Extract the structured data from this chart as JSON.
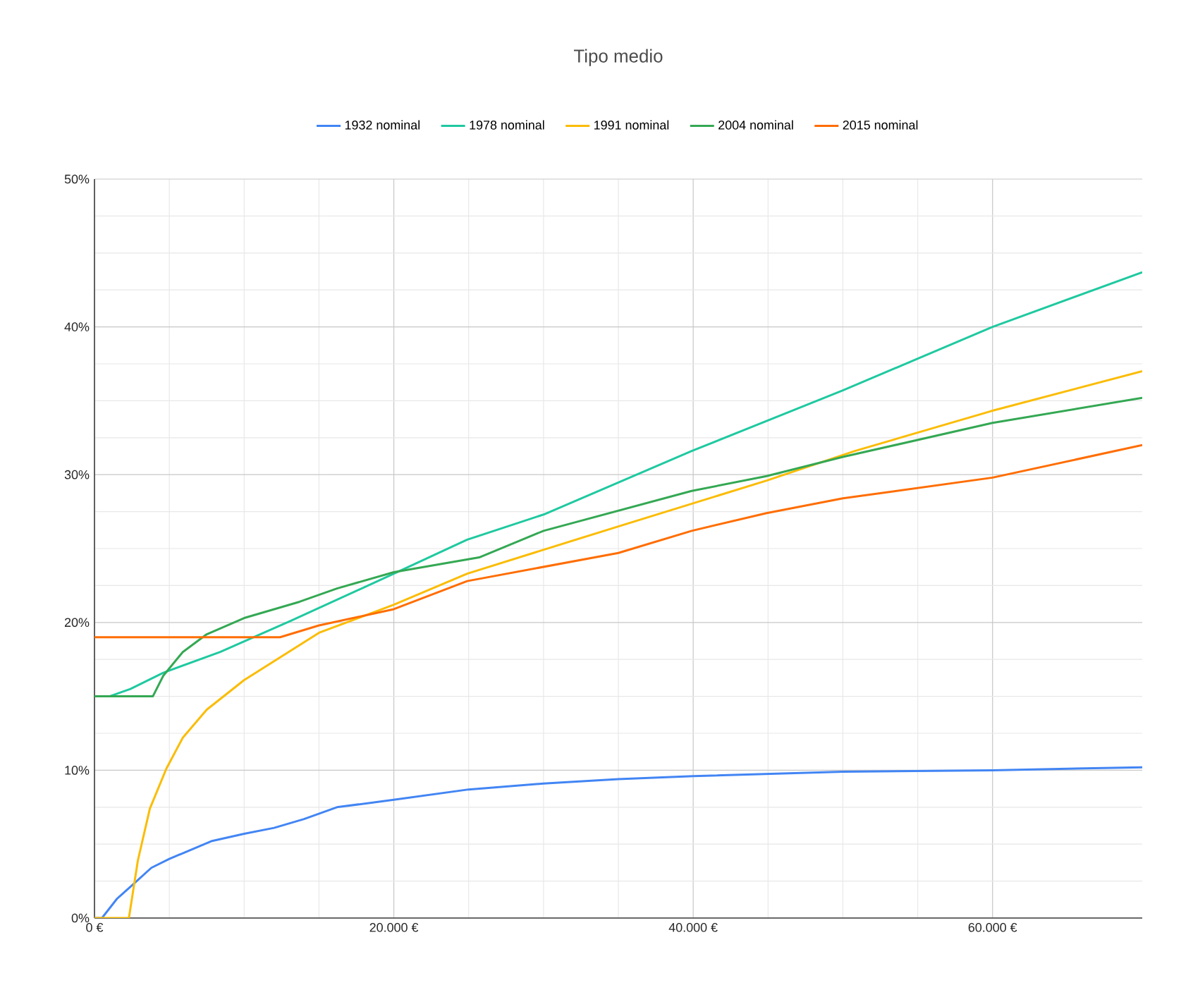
{
  "chart_data": {
    "type": "line",
    "title": "Tipo medio",
    "legend": "top",
    "grid": true,
    "marker": "none",
    "line_style": "solid",
    "xlim": [
      0,
      70000
    ],
    "ylim": [
      0,
      50
    ],
    "xticks": [
      {
        "value": 0,
        "label": "0 €"
      },
      {
        "value": 20000,
        "label": "20.000 €"
      },
      {
        "value": 40000,
        "label": "40.000 €"
      },
      {
        "value": 60000,
        "label": "60.000 €"
      }
    ],
    "yticks": [
      {
        "value": 0,
        "label": "0%"
      },
      {
        "value": 10,
        "label": "10%"
      },
      {
        "value": 20,
        "label": "20%"
      },
      {
        "value": 30,
        "label": "30%"
      },
      {
        "value": 40,
        "label": "40%"
      },
      {
        "value": 50,
        "label": "50%"
      }
    ],
    "series": [
      {
        "name": "1932 nominal",
        "color": "#4285f4",
        "x": [
          0,
          500,
          1500,
          2600,
          3800,
          5000,
          7800,
          10000,
          12000,
          14000,
          16200,
          20000,
          25000,
          30000,
          35000,
          40000,
          50000,
          60000,
          70000
        ],
        "values": [
          0,
          0,
          1.3,
          2.3,
          3.4,
          4.0,
          5.2,
          5.7,
          6.1,
          6.7,
          7.5,
          8.0,
          8.7,
          9.1,
          9.4,
          9.6,
          9.9,
          10.0,
          10.2
        ]
      },
      {
        "name": "1978 nominal",
        "color": "#1fc9a0",
        "x": [
          0,
          1000,
          2400,
          4600,
          8400,
          13100,
          20000,
          24900,
          30000,
          39900,
          50000,
          60000,
          70000
        ],
        "values": [
          15,
          15,
          15.5,
          16.6,
          18.0,
          20.1,
          23.3,
          25.6,
          27.3,
          31.6,
          35.7,
          40.0,
          43.7
        ]
      },
      {
        "name": "1991 nominal",
        "color": "#fbbc04",
        "x": [
          0,
          2300,
          2900,
          3700,
          4800,
          5900,
          7500,
          10000,
          12500,
          15000,
          20000,
          24900,
          35000,
          44900,
          50800,
          59900,
          70000
        ],
        "values": [
          0,
          0,
          3.9,
          7.4,
          10.1,
          12.2,
          14.1,
          16.1,
          17.7,
          19.3,
          21.2,
          23.3,
          26.5,
          29.6,
          31.6,
          34.3,
          37.0
        ]
      },
      {
        "name": "2004 nominal",
        "color": "#34a853",
        "x": [
          0,
          3900,
          4600,
          5900,
          7500,
          10000,
          13700,
          16200,
          20000,
          25700,
          30000,
          39900,
          44900,
          50000,
          60000,
          70000
        ],
        "values": [
          15,
          15,
          16.4,
          18.0,
          19.2,
          20.3,
          21.4,
          22.3,
          23.4,
          24.4,
          26.2,
          28.9,
          29.9,
          31.2,
          33.5,
          35.2
        ]
      },
      {
        "name": "2015 nominal",
        "color": "#ff6d01",
        "x": [
          0,
          12400,
          15000,
          20000,
          24900,
          35000,
          39900,
          44900,
          50000,
          60000,
          70000
        ],
        "values": [
          19.0,
          19.0,
          19.8,
          20.9,
          22.8,
          24.7,
          26.2,
          27.4,
          28.4,
          29.8,
          32.0
        ]
      }
    ]
  }
}
